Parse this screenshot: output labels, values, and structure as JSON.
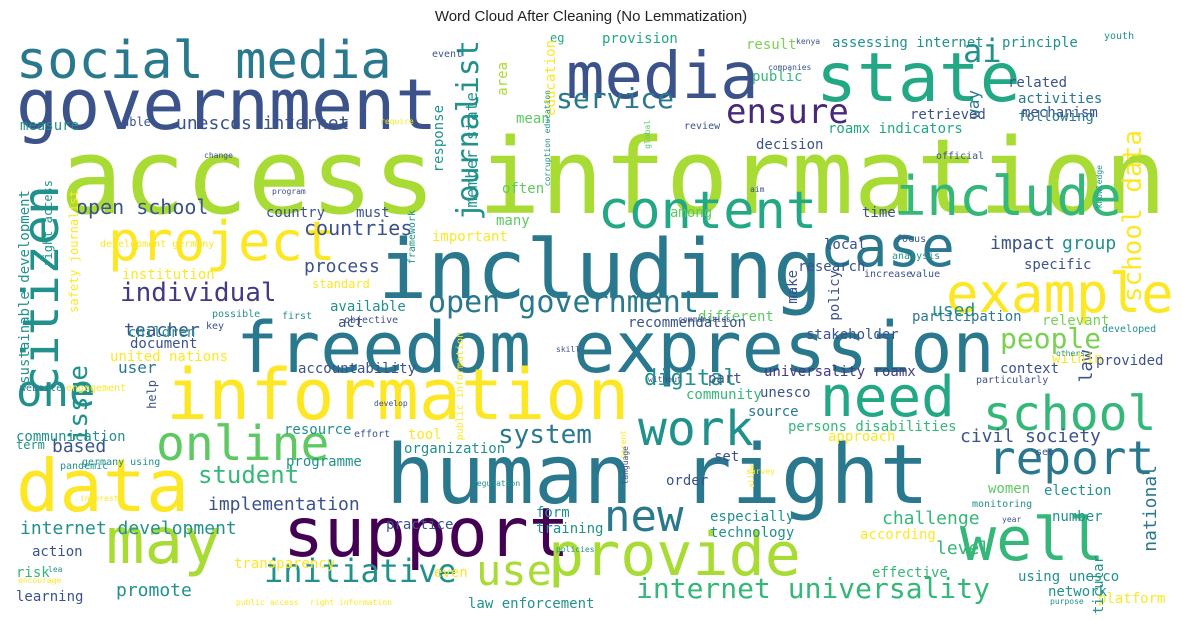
{
  "title": "Word Cloud After Cleaning (No Lemmatization)",
  "palette": {
    "background": "#ffffff",
    "title_color": "#222222"
  },
  "words": [
    {
      "text": "access"
    },
    {
      "text": "information"
    },
    {
      "text": "government"
    },
    {
      "text": "social media"
    },
    {
      "text": "media"
    },
    {
      "text": "state"
    },
    {
      "text": "ai"
    },
    {
      "text": "including"
    },
    {
      "text": "human right"
    },
    {
      "text": "freedom expression"
    },
    {
      "text": "information"
    },
    {
      "text": "project"
    },
    {
      "text": "case"
    },
    {
      "text": "include"
    },
    {
      "text": "content"
    },
    {
      "text": "example"
    },
    {
      "text": "need"
    },
    {
      "text": "school"
    },
    {
      "text": "data"
    },
    {
      "text": "may"
    },
    {
      "text": "support"
    },
    {
      "text": "provide"
    },
    {
      "text": "well"
    },
    {
      "text": "report"
    },
    {
      "text": "work"
    },
    {
      "text": "online"
    },
    {
      "text": "citizen"
    },
    {
      "text": "one"
    },
    {
      "text": "use"
    },
    {
      "text": "new"
    },
    {
      "text": "open government"
    },
    {
      "text": "ensure"
    },
    {
      "text": "service"
    },
    {
      "text": "school data"
    },
    {
      "text": "journalist"
    },
    {
      "text": "individual"
    },
    {
      "text": "internet universality"
    },
    {
      "text": "initiative"
    },
    {
      "text": "people"
    },
    {
      "text": "system"
    },
    {
      "text": "digital"
    },
    {
      "text": "civil society"
    },
    {
      "text": "student"
    },
    {
      "text": "issue"
    },
    {
      "text": "open school"
    },
    {
      "text": "countries"
    },
    {
      "text": "unescos internet"
    },
    {
      "text": "implementation"
    },
    {
      "text": "internet development"
    },
    {
      "text": "teacher"
    },
    {
      "text": "based"
    },
    {
      "text": "process"
    },
    {
      "text": "impact"
    },
    {
      "text": "group"
    },
    {
      "text": "used"
    },
    {
      "text": "law"
    },
    {
      "text": "national"
    },
    {
      "text": "challenge"
    },
    {
      "text": "level"
    },
    {
      "text": "promote"
    },
    {
      "text": "universality roamx"
    },
    {
      "text": "accountability"
    },
    {
      "text": "user"
    },
    {
      "text": "member state"
    },
    {
      "text": "way"
    },
    {
      "text": "decision"
    },
    {
      "text": "assessing internet"
    },
    {
      "text": "principle"
    },
    {
      "text": "provision"
    },
    {
      "text": "eg"
    },
    {
      "text": "mechanism"
    },
    {
      "text": "activities"
    },
    {
      "text": "related"
    },
    {
      "text": "following"
    },
    {
      "text": "retrieved"
    },
    {
      "text": "roamx indicators"
    },
    {
      "text": "result"
    },
    {
      "text": "public"
    },
    {
      "text": "mean"
    },
    {
      "text": "education"
    },
    {
      "text": "area"
    },
    {
      "text": "response"
    },
    {
      "text": "measure"
    },
    {
      "text": "able"
    },
    {
      "text": "time"
    },
    {
      "text": "local"
    },
    {
      "text": "research"
    },
    {
      "text": "make"
    },
    {
      "text": "policy"
    },
    {
      "text": "specific"
    },
    {
      "text": "stakeholder"
    },
    {
      "text": "participation"
    },
    {
      "text": "relevant"
    },
    {
      "text": "within"
    },
    {
      "text": "provided"
    },
    {
      "text": "context"
    },
    {
      "text": "unesco"
    },
    {
      "text": "source"
    },
    {
      "text": "persons disabilities"
    },
    {
      "text": "approach"
    },
    {
      "text": "community"
    },
    {
      "text": "part"
    },
    {
      "text": "tool"
    },
    {
      "text": "organization"
    },
    {
      "text": "order"
    },
    {
      "text": "set"
    },
    {
      "text": "especially"
    },
    {
      "text": "technology"
    },
    {
      "text": "according"
    },
    {
      "text": "training"
    },
    {
      "text": "form"
    },
    {
      "text": "practice"
    },
    {
      "text": "resource"
    },
    {
      "text": "programme"
    },
    {
      "text": "election"
    },
    {
      "text": "women"
    },
    {
      "text": "number"
    },
    {
      "text": "using unesco"
    },
    {
      "text": "network"
    },
    {
      "text": "platform"
    },
    {
      "text": "particular"
    },
    {
      "text": "effective"
    },
    {
      "text": "law enforcement"
    },
    {
      "text": "even"
    },
    {
      "text": "transparency"
    },
    {
      "text": "action"
    },
    {
      "text": "risk"
    },
    {
      "text": "learning"
    },
    {
      "text": "united nations"
    },
    {
      "text": "document"
    },
    {
      "text": "children"
    },
    {
      "text": "available"
    },
    {
      "text": "act"
    },
    {
      "text": "different"
    },
    {
      "text": "recommendation"
    },
    {
      "text": "must"
    },
    {
      "text": "country"
    },
    {
      "text": "often"
    },
    {
      "text": "many"
    },
    {
      "text": "among"
    },
    {
      "text": "important"
    },
    {
      "text": "standard"
    },
    {
      "text": "communication"
    },
    {
      "text": "sustainable development"
    },
    {
      "text": "right access"
    },
    {
      "text": "safety journalist"
    },
    {
      "text": "help"
    },
    {
      "text": "term"
    },
    {
      "text": "pandemic"
    },
    {
      "text": "germany using"
    },
    {
      "text": "website"
    },
    {
      "text": "engagement"
    },
    {
      "text": "institution"
    },
    {
      "text": "development germany"
    },
    {
      "text": "program"
    },
    {
      "text": "change"
    },
    {
      "text": "require"
    },
    {
      "text": "corruption education"
    },
    {
      "text": "companies"
    },
    {
      "text": "kenya"
    },
    {
      "text": "youth"
    },
    {
      "text": "event"
    },
    {
      "text": "review"
    },
    {
      "text": "official"
    },
    {
      "text": "global"
    },
    {
      "text": "aim"
    },
    {
      "text": "knowledge"
    },
    {
      "text": "focus"
    },
    {
      "text": "analysis"
    },
    {
      "text": "increase"
    },
    {
      "text": "value"
    },
    {
      "text": "framework"
    },
    {
      "text": "first"
    },
    {
      "text": "objective"
    },
    {
      "text": "possible"
    },
    {
      "text": "key"
    },
    {
      "text": "communities"
    },
    {
      "text": "public information"
    },
    {
      "text": "skill"
    },
    {
      "text": "without"
    },
    {
      "text": "particularly"
    },
    {
      "text": "others"
    },
    {
      "text": "developed"
    },
    {
      "text": "see"
    },
    {
      "text": "develop"
    },
    {
      "text": "effort"
    },
    {
      "text": "parent"
    },
    {
      "text": "language"
    },
    {
      "text": "survey"
    },
    {
      "text": "allow"
    },
    {
      "text": "regulation"
    },
    {
      "text": "policies"
    },
    {
      "text": "interest"
    },
    {
      "text": "encourage"
    },
    {
      "text": "lea"
    },
    {
      "text": "public access"
    },
    {
      "text": "right information"
    },
    {
      "text": "purpose"
    },
    {
      "text": "year"
    },
    {
      "text": "monitoring"
    }
  ]
}
